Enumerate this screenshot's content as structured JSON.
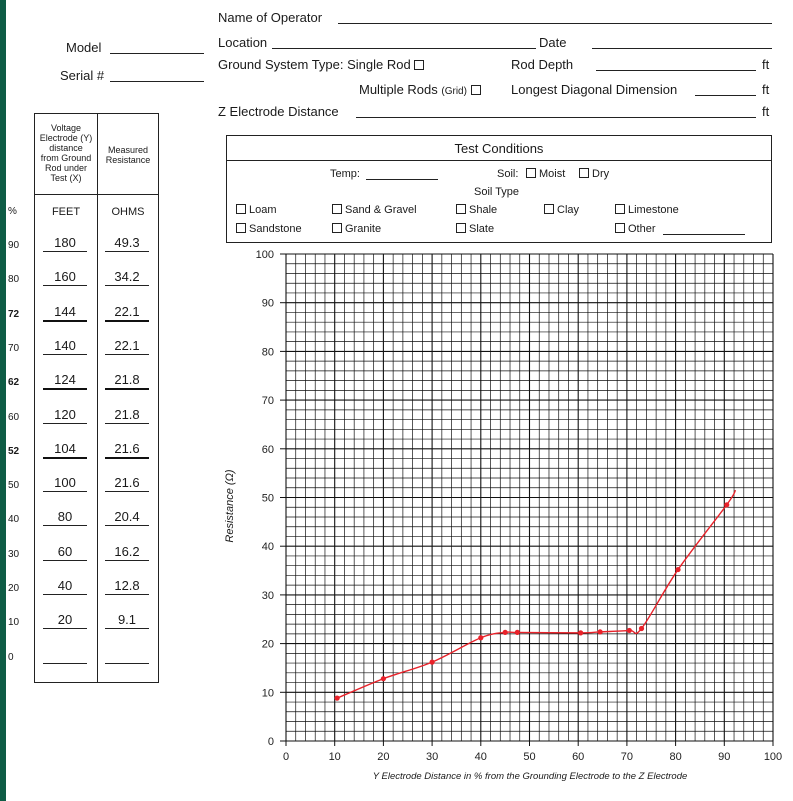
{
  "form": {
    "operator_label": "Name of Operator",
    "location_label": "Location",
    "date_label": "Date",
    "model_label": "Model",
    "serial_label": "Serial #",
    "ground_system_label": "Ground System Type: Single Rod",
    "rod_depth_label": "Rod Depth",
    "multiple_rods_label": "Multiple Rods",
    "grid_label": "(Grid)",
    "longest_diag_label": "Longest Diagonal Dimension",
    "z_distance_label": "Z Electrode Distance",
    "ft_unit": "ft"
  },
  "test_conditions": {
    "title": "Test Conditions",
    "temp_label": "Temp:",
    "soil_label": "Soil:",
    "moist_label": "Moist",
    "dry_label": "Dry",
    "soil_type_label": "Soil Type",
    "soil_types_row1": [
      "Loam",
      "Sand & Gravel",
      "Shale",
      "Clay",
      "Limestone"
    ],
    "soil_types_row2": [
      "Sandstone",
      "Granite",
      "Slate",
      "Other"
    ]
  },
  "table": {
    "col1_header": [
      "Voltage",
      "Electrode (Y)",
      "distance",
      "from Ground",
      "Rod under",
      "Test (X)"
    ],
    "col2_header": [
      "Measured",
      "Resistance"
    ],
    "pct_label": "%",
    "feet_label": "FEET",
    "ohms_label": "OHMS",
    "rows": [
      {
        "pct": "90",
        "feet": "180",
        "ohms": "49.3",
        "bold": false
      },
      {
        "pct": "80",
        "feet": "160",
        "ohms": "34.2",
        "bold": false
      },
      {
        "pct": "72",
        "feet": "144",
        "ohms": "22.1",
        "bold": true
      },
      {
        "pct": "70",
        "feet": "140",
        "ohms": "22.1",
        "bold": false
      },
      {
        "pct": "62",
        "feet": "124",
        "ohms": "21.8",
        "bold": true
      },
      {
        "pct": "60",
        "feet": "120",
        "ohms": "21.8",
        "bold": false
      },
      {
        "pct": "52",
        "feet": "104",
        "ohms": "21.6",
        "bold": true
      },
      {
        "pct": "50",
        "feet": "100",
        "ohms": "21.6",
        "bold": false
      },
      {
        "pct": "40",
        "feet": "80",
        "ohms": "20.4",
        "bold": false
      },
      {
        "pct": "30",
        "feet": "60",
        "ohms": "16.2",
        "bold": false
      },
      {
        "pct": "20",
        "feet": "40",
        "ohms": "12.8",
        "bold": false
      },
      {
        "pct": "10",
        "feet": "20",
        "ohms": "9.1",
        "bold": false
      },
      {
        "pct": "0",
        "feet": "",
        "ohms": "",
        "bold": false
      }
    ]
  },
  "chart_data": {
    "type": "line",
    "title": "",
    "xlabel": "Y Electrode Distance in % from the Grounding Electrode to the Z Electrode",
    "ylabel": "Resistance (Ω)",
    "xlim": [
      0,
      100
    ],
    "ylim": [
      0,
      100
    ],
    "x_ticks": [
      0,
      10,
      20,
      30,
      40,
      50,
      60,
      70,
      80,
      90,
      100
    ],
    "y_ticks": [
      0,
      10,
      20,
      30,
      40,
      50,
      60,
      70,
      80,
      90,
      100
    ],
    "grid": true,
    "series_color": "#e8222a",
    "points": [
      {
        "x": 10.5,
        "y": 8.8
      },
      {
        "x": 20,
        "y": 12.8
      },
      {
        "x": 30,
        "y": 16.2
      },
      {
        "x": 40,
        "y": 21.2
      },
      {
        "x": 45,
        "y": 22.3
      },
      {
        "x": 47.5,
        "y": 22.3
      },
      {
        "x": 60.5,
        "y": 22.2
      },
      {
        "x": 64.5,
        "y": 22.4
      },
      {
        "x": 70.5,
        "y": 22.7
      },
      {
        "x": 73,
        "y": 23.1
      },
      {
        "x": 80.5,
        "y": 35.2
      },
      {
        "x": 90.5,
        "y": 48.5
      }
    ],
    "curve_end": {
      "x": 92.3,
      "y": 51.5
    }
  }
}
